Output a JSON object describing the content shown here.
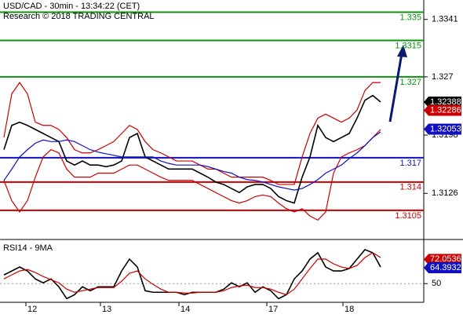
{
  "chart_data": [
    {
      "type": "line",
      "title": "USD/CAD - 30min - 13:34:22 (CET)",
      "subtitle": "Research © 2018 TRADING CENTRAL",
      "xlim": [
        -0.5,
        53.5
      ],
      "x": [
        0,
        1,
        2,
        3,
        4,
        5,
        6,
        7,
        8,
        9,
        10,
        11,
        12,
        13,
        14,
        15,
        16,
        17,
        18,
        19,
        20,
        21,
        22,
        23,
        24,
        25,
        26,
        27,
        28,
        29,
        30,
        31,
        32,
        33,
        34,
        35,
        36,
        37,
        38,
        39,
        40,
        41,
        42,
        43,
        44,
        45,
        46,
        47,
        48
      ],
      "ylim": [
        1.3069,
        1.3365
      ],
      "yticks": [
        1.3341,
        1.327,
        1.3198,
        1.3126
      ],
      "series": [
        {
          "color": "#000000",
          "values": [
            1.318,
            1.321,
            1.3214,
            1.321,
            1.3205,
            1.32,
            1.3195,
            1.319,
            1.3166,
            1.3161,
            1.3166,
            1.3161,
            1.3161,
            1.3159,
            1.3161,
            1.3166,
            1.3195,
            1.32,
            1.3171,
            1.3166,
            1.3161,
            1.3156,
            1.3156,
            1.3156,
            1.3156,
            1.3151,
            1.3146,
            1.314,
            1.3137,
            1.3132,
            1.3127,
            1.3134,
            1.3137,
            1.3137,
            1.3132,
            1.3122,
            1.3117,
            1.3114,
            1.3146,
            1.3171,
            1.321,
            1.3195,
            1.319,
            1.3195,
            1.32,
            1.3219,
            1.3241,
            1.3247,
            1.3239
          ]
        },
        {
          "color": "#cc0000",
          "values": [
            1.3195,
            1.3249,
            1.3263,
            1.3249,
            1.3214,
            1.321,
            1.321,
            1.3205,
            1.3195,
            1.318,
            1.3176,
            1.3176,
            1.318,
            1.3185,
            1.319,
            1.32,
            1.321,
            1.3205,
            1.319,
            1.318,
            1.3176,
            1.3171,
            1.3166,
            1.3166,
            1.3166,
            1.3161,
            1.3156,
            1.3156,
            1.3151,
            1.3146,
            1.3146,
            1.3146,
            1.3146,
            1.3146,
            1.3142,
            1.3137,
            1.3137,
            1.3137,
            1.3171,
            1.32,
            1.3219,
            1.3224,
            1.3219,
            1.3214,
            1.3219,
            1.3229,
            1.3253,
            1.3263,
            1.3263
          ]
        },
        {
          "color": "#cc0000",
          "values": [
            1.3142,
            1.3117,
            1.3103,
            1.3117,
            1.3146,
            1.3171,
            1.318,
            1.3176,
            1.3156,
            1.3146,
            1.3146,
            1.3146,
            1.3151,
            1.3151,
            1.3151,
            1.3156,
            1.3161,
            1.3161,
            1.3156,
            1.3151,
            1.3146,
            1.3142,
            1.3142,
            1.3142,
            1.3142,
            1.3137,
            1.3132,
            1.3127,
            1.3122,
            1.3117,
            1.3114,
            1.3117,
            1.3122,
            1.3124,
            1.3122,
            1.3114,
            1.3107,
            1.3103,
            1.3107,
            1.3098,
            1.3093,
            1.3103,
            1.3151,
            1.3171,
            1.3176,
            1.318,
            1.3185,
            1.3195,
            1.3205
          ]
        },
        {
          "color": "#1010c0",
          "values": [
            1.3142,
            1.3156,
            1.3171,
            1.318,
            1.3188,
            1.3192,
            1.319,
            1.319,
            1.3192,
            1.319,
            1.3185,
            1.318,
            1.3177,
            1.3175,
            1.3173,
            1.3171,
            1.3171,
            1.3171,
            1.3171,
            1.3171,
            1.3166,
            1.3163,
            1.3161,
            1.3161,
            1.3161,
            1.3161,
            1.3159,
            1.3156,
            1.3153,
            1.3151,
            1.3146,
            1.3143,
            1.3142,
            1.314,
            1.3137,
            1.3134,
            1.3132,
            1.313,
            1.3132,
            1.3137,
            1.3143,
            1.3151,
            1.3156,
            1.3161,
            1.3169,
            1.3176,
            1.3185,
            1.3195,
            1.3202
          ]
        }
      ],
      "levels": [
        1.335,
        1.3315,
        1.327,
        1.317,
        1.314,
        1.3105
      ],
      "level_colors": [
        "#109010",
        "#109010",
        "#109010",
        "#1010c0",
        "#cc0000",
        "#cc0000"
      ],
      "markers": [
        {
          "value": 1.32388,
          "color": "#000000"
        },
        {
          "value": 1.32286,
          "color": "#cc0000"
        },
        {
          "value": 1.32053,
          "color": "#1010c0"
        }
      ]
    },
    {
      "type": "line",
      "title": "RSI14 - 9MA",
      "xlim": [
        -0.5,
        53.5
      ],
      "x": [
        0,
        1,
        2,
        3,
        4,
        5,
        6,
        7,
        8,
        9,
        10,
        11,
        12,
        13,
        14,
        15,
        16,
        17,
        18,
        19,
        20,
        21,
        22,
        23,
        24,
        25,
        26,
        27,
        28,
        29,
        30,
        31,
        32,
        33,
        34,
        35,
        36,
        37,
        38,
        39,
        40,
        41,
        42,
        43,
        44,
        45,
        46,
        47,
        48
      ],
      "xticks": [
        {
          "value": 2.8,
          "label": "12"
        },
        {
          "value": 12.3,
          "label": "13"
        },
        {
          "value": 22.3,
          "label": "14"
        },
        {
          "value": 33.5,
          "label": "17"
        },
        {
          "value": 43.2,
          "label": "18"
        }
      ],
      "ylim": [
        33,
        88
      ],
      "yticks": [
        50
      ],
      "series": [
        {
          "color": "#000000",
          "values": [
            57.9,
            61.5,
            65.1,
            61.5,
            54.3,
            50.7,
            54.3,
            47.1,
            36.3,
            39.9,
            47.1,
            43.5,
            47.1,
            47.1,
            47.1,
            61.5,
            72.3,
            65.1,
            43.5,
            42.1,
            42.1,
            42.1,
            42.1,
            39.9,
            42.1,
            42.1,
            42.1,
            42.1,
            44.9,
            50.7,
            47.1,
            50.7,
            42.1,
            47.1,
            43.5,
            36.3,
            39.9,
            54.3,
            61.5,
            72.3,
            78.1,
            65.1,
            61.5,
            61.5,
            63.7,
            72.3,
            80.9,
            78.1,
            65.1
          ]
        },
        {
          "color": "#cc0000",
          "values": [
            54.3,
            57.9,
            61.5,
            62.9,
            60.1,
            56.5,
            53.6,
            50.7,
            45.0,
            42.1,
            43.5,
            45.0,
            46.4,
            46.4,
            46.4,
            52.2,
            59.4,
            61.5,
            54.3,
            49.3,
            45.0,
            42.1,
            42.1,
            41.4,
            41.4,
            42.1,
            42.1,
            42.1,
            43.5,
            46.4,
            47.8,
            48.6,
            46.4,
            46.4,
            45.0,
            42.1,
            39.9,
            45.0,
            54.3,
            63.7,
            72.3,
            72.3,
            68.0,
            65.1,
            63.7,
            66.5,
            73.7,
            78.1,
            73.7
          ]
        }
      ],
      "markers": [
        {
          "value": 72.0536,
          "color": "#cc0000"
        },
        {
          "value": 64.3932,
          "color": "#1010c0"
        }
      ]
    }
  ]
}
